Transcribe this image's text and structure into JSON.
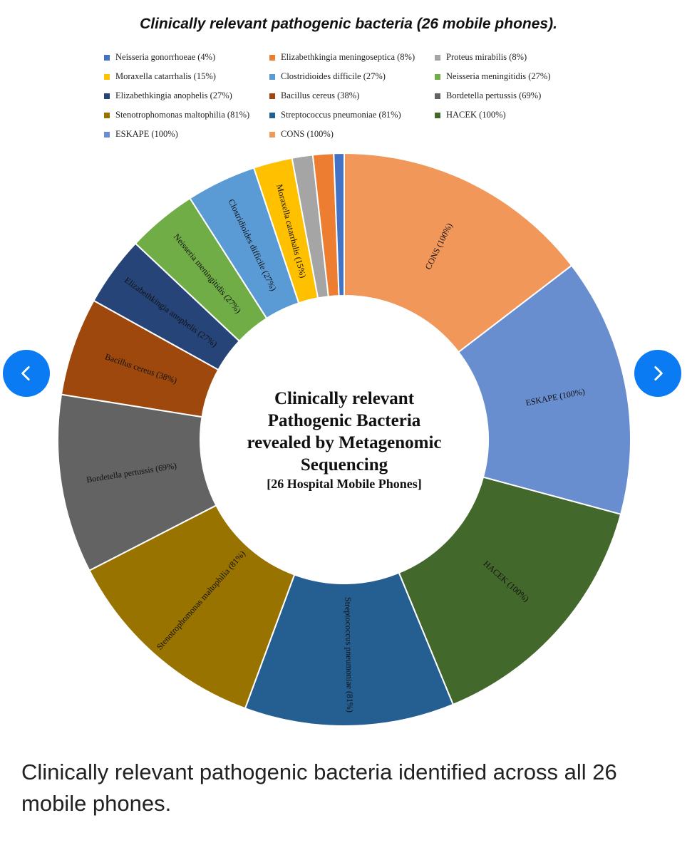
{
  "chart_data": {
    "type": "pie",
    "donut": true,
    "title": "Clinically relevant pathogenic bacteria (26 mobile phones).",
    "center_text": [
      "Clinically relevant",
      "Pathogenic Bacteria",
      "revealed by Metagenomic",
      "Sequencing"
    ],
    "center_subtext": "[26 Hospital Mobile Phones]",
    "legend_position": "top",
    "series": [
      {
        "name": "Neisseria gonorrhoeae (4%)",
        "short": "Neisseria gonorrhoeae",
        "value": 4,
        "color": "#4472c4"
      },
      {
        "name": "Elizabethkingia meningoseptica (8%)",
        "short": "Elizabethkingia meningoseptica",
        "value": 8,
        "color": "#ed7d31"
      },
      {
        "name": "Proteus mirabilis (8%)",
        "short": "Proteus mirabilis",
        "value": 8,
        "color": "#a5a5a5"
      },
      {
        "name": "Moraxella catarrhalis (15%)",
        "short": "Moraxella catarrhalis",
        "value": 15,
        "color": "#ffc000"
      },
      {
        "name": "Clostridioides difficile (27%)",
        "short": "Clostridioides difficile",
        "value": 27,
        "color": "#5b9bd5"
      },
      {
        "name": "Neisseria meningitidis (27%)",
        "short": "Neisseria meningitidis",
        "value": 27,
        "color": "#70ad47"
      },
      {
        "name": "Elizabethkingia anophelis (27%)",
        "short": "Elizabethkingia anophelis",
        "value": 27,
        "color": "#264478"
      },
      {
        "name": "Bacillus cereus (38%)",
        "short": "Bacillus cereus",
        "value": 38,
        "color": "#9e480e"
      },
      {
        "name": "Bordetella pertussis (69%)",
        "short": "Bordetella pertussis",
        "value": 69,
        "color": "#636363"
      },
      {
        "name": "Stenotrophomonas maltophilia (81%)",
        "short": "Stenotrophomonas maltophilia",
        "value": 81,
        "color": "#997300"
      },
      {
        "name": "Streptococcus pneumoniae (81%)",
        "short": "Streptococcus pneumoniae",
        "value": 81,
        "color": "#255e91"
      },
      {
        "name": "HACEK (100%)",
        "short": "HACEK",
        "value": 100,
        "color": "#43682b"
      },
      {
        "name": "ESKAPE (100%)",
        "short": "ESKAPE",
        "value": 100,
        "color": "#698ed0"
      },
      {
        "name": "CONS (100%)",
        "short": "CONS",
        "value": 100,
        "color": "#f1975a"
      }
    ],
    "drawing_order": [
      13,
      12,
      11,
      10,
      9,
      8,
      7,
      6,
      5,
      4,
      3,
      2,
      1,
      0
    ],
    "labeled_segments": [
      13,
      12,
      11,
      10,
      9,
      8,
      7,
      6,
      5,
      4,
      3
    ]
  },
  "caption": "Clinically relevant pathogenic bacteria identified across all 26 mobile phones.",
  "nav": {
    "prev_icon": "chevron-left-icon",
    "next_icon": "chevron-right-icon",
    "accent": "#0a7bf2"
  }
}
